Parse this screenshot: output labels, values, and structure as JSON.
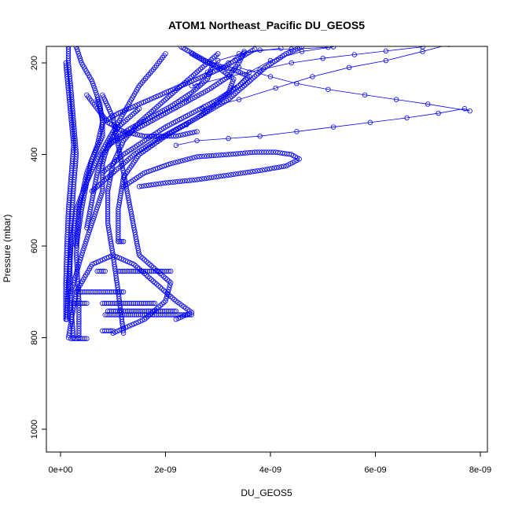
{
  "chart_data": {
    "type": "scatter",
    "title": "ATOM1 Northeast_Pacific DU_GEOS5",
    "xlabel": "DU_GEOS5",
    "ylabel": "Pressure (mbar)",
    "xlim": [
      0,
      8e-09
    ],
    "ylim": [
      1050,
      160
    ],
    "y_reversed": true,
    "grid": false,
    "legend": "none",
    "series_color": "#0000ff",
    "marker": "open-circle",
    "x_ticks": [
      {
        "value": 0,
        "label": "0e+00"
      },
      {
        "value": 2e-09,
        "label": "2e-09"
      },
      {
        "value": 4e-09,
        "label": "4e-09"
      },
      {
        "value": 6e-09,
        "label": "6e-09"
      },
      {
        "value": 8e-09,
        "label": "8e-09"
      }
    ],
    "y_ticks": [
      {
        "value": 200,
        "label": "200"
      },
      {
        "value": 400,
        "label": "400"
      },
      {
        "value": 600,
        "label": "600"
      },
      {
        "value": 800,
        "label": "800"
      },
      {
        "value": 1000,
        "label": "1000"
      }
    ],
    "profiles": [
      {
        "line": false,
        "step": 3,
        "points": [
          [
            2.5e-10,
            800
          ],
          [
            2e-10,
            740
          ],
          [
            1.8e-10,
            650
          ],
          [
            2e-10,
            560
          ],
          [
            2.5e-10,
            470
          ],
          [
            3e-10,
            400
          ],
          [
            2.5e-10,
            330
          ],
          [
            2e-10,
            260
          ],
          [
            1.5e-10,
            200
          ],
          [
            1.5e-10,
            165
          ]
        ]
      },
      {
        "line": false,
        "step": 3,
        "points": [
          [
            3.5e-10,
            800
          ],
          [
            3.5e-10,
            720
          ],
          [
            3e-10,
            620
          ],
          [
            3.5e-10,
            520
          ],
          [
            5e-10,
            440
          ],
          [
            7e-10,
            380
          ],
          [
            8e-10,
            330
          ],
          [
            7.5e-10,
            290
          ],
          [
            6e-10,
            240
          ],
          [
            4e-10,
            200
          ],
          [
            3e-10,
            165
          ]
        ]
      },
      {
        "line": false,
        "step": 3,
        "points": [
          [
            1.2e-10,
            760
          ],
          [
            1.5e-10,
            680
          ],
          [
            2e-10,
            600
          ],
          [
            3e-10,
            520
          ],
          [
            5e-10,
            460
          ],
          [
            7e-10,
            410
          ],
          [
            9e-10,
            370
          ],
          [
            1.1e-09,
            330
          ],
          [
            1.3e-09,
            290
          ],
          [
            1.5e-09,
            250
          ],
          [
            1.8e-09,
            210
          ],
          [
            2e-09,
            180
          ]
        ]
      },
      {
        "line": false,
        "step": 3,
        "points": [
          [
            1.5e-10,
            800
          ],
          [
            3e-10,
            700
          ],
          [
            6e-10,
            640
          ],
          [
            1e-09,
            620
          ],
          [
            1.4e-09,
            640
          ],
          [
            1.8e-09,
            680
          ],
          [
            2.2e-09,
            720
          ],
          [
            2.5e-09,
            745
          ],
          [
            2.2e-09,
            760
          ]
        ]
      },
      {
        "line": false,
        "step": 3,
        "points": [
          [
            1.2e-09,
            790
          ],
          [
            1.1e-09,
            700
          ],
          [
            1e-09,
            620
          ],
          [
            9e-10,
            550
          ],
          [
            9e-10,
            480
          ],
          [
            1e-09,
            420
          ],
          [
            1.2e-09,
            370
          ],
          [
            1.5e-09,
            330
          ],
          [
            1.9e-09,
            290
          ],
          [
            2.3e-09,
            250
          ],
          [
            2.7e-09,
            210
          ],
          [
            3e-09,
            180
          ]
        ]
      },
      {
        "line": false,
        "step": 3,
        "points": [
          [
            1e-09,
            790
          ],
          [
            1.6e-09,
            760
          ],
          [
            2e-09,
            720
          ],
          [
            2.1e-09,
            680
          ],
          [
            1.8e-09,
            650
          ],
          [
            1.5e-09,
            620
          ],
          [
            1.4e-09,
            560
          ],
          [
            1.3e-09,
            500
          ],
          [
            1.2e-09,
            440
          ],
          [
            1.1e-09,
            380
          ],
          [
            1e-09,
            320
          ],
          [
            8e-10,
            270
          ]
        ]
      },
      {
        "line": false,
        "step": 3,
        "points": [
          [
            1.1e-09,
            590
          ],
          [
            1.1e-09,
            520
          ],
          [
            1.2e-09,
            450
          ],
          [
            1.5e-09,
            400
          ],
          [
            2e-09,
            360
          ],
          [
            2.6e-09,
            320
          ],
          [
            3.2e-09,
            280
          ],
          [
            3.6e-09,
            240
          ],
          [
            3.9e-09,
            210
          ],
          [
            4.3e-09,
            180
          ],
          [
            4.6e-09,
            165
          ]
        ]
      },
      {
        "line": false,
        "step": 3,
        "points": [
          [
            1.2e-09,
            470
          ],
          [
            1.6e-09,
            440
          ],
          [
            2.1e-09,
            420
          ],
          [
            2.6e-09,
            405
          ],
          [
            3.2e-09,
            400
          ],
          [
            3.7e-09,
            395
          ],
          [
            4.1e-09,
            395
          ],
          [
            4.4e-09,
            400
          ],
          [
            4.55e-09,
            410
          ],
          [
            4.3e-09,
            425
          ],
          [
            3.8e-09,
            435
          ],
          [
            3.2e-09,
            445
          ],
          [
            2.6e-09,
            455
          ],
          [
            2e-09,
            462
          ],
          [
            1.5e-09,
            470
          ]
        ]
      },
      {
        "line": false,
        "step": 3,
        "points": [
          [
            8e-10,
            440
          ],
          [
            1.2e-09,
            400
          ],
          [
            1.6e-09,
            370
          ],
          [
            2e-09,
            340
          ],
          [
            2.5e-09,
            310
          ],
          [
            3e-09,
            280
          ],
          [
            3.4e-09,
            250
          ],
          [
            3.6e-09,
            230
          ],
          [
            3.3e-09,
            215
          ],
          [
            2.8e-09,
            200
          ],
          [
            2.5e-09,
            180
          ]
        ]
      },
      {
        "line": false,
        "step": 3,
        "points": [
          [
            6e-10,
            480
          ],
          [
            1e-09,
            440
          ],
          [
            1.4e-09,
            400
          ],
          [
            1.8e-09,
            370
          ],
          [
            2.2e-09,
            345
          ],
          [
            2.6e-09,
            320
          ],
          [
            2.9e-09,
            295
          ],
          [
            3.2e-09,
            265
          ],
          [
            3.3e-09,
            235
          ],
          [
            3e-09,
            210
          ],
          [
            2.6e-09,
            185
          ],
          [
            2.3e-09,
            165
          ]
        ]
      },
      {
        "line": false,
        "step": 3,
        "points": [
          [
            5e-10,
            270
          ],
          [
            7e-10,
            300
          ],
          [
            9e-10,
            330
          ],
          [
            1.2e-09,
            350
          ],
          [
            1.6e-09,
            360
          ],
          [
            2.2e-09,
            360
          ],
          [
            2.6e-09,
            350
          ]
        ]
      },
      {
        "line": false,
        "step": 3,
        "points": [
          [
            8e-10,
            330
          ],
          [
            1.1e-09,
            310
          ],
          [
            1.5e-09,
            290
          ],
          [
            1.9e-09,
            270
          ],
          [
            2.3e-09,
            250
          ],
          [
            2.7e-09,
            230
          ],
          [
            3.1e-09,
            210
          ],
          [
            3.4e-09,
            190
          ],
          [
            3.7e-09,
            170
          ]
        ]
      },
      {
        "line": false,
        "step": 3,
        "points": [
          [
            9e-10,
            380
          ],
          [
            1.2e-09,
            360
          ],
          [
            1.6e-09,
            335
          ],
          [
            2e-09,
            310
          ],
          [
            2.4e-09,
            285
          ],
          [
            2.8e-09,
            260
          ],
          [
            3.2e-09,
            230
          ],
          [
            3.4e-09,
            200
          ],
          [
            3.5e-09,
            175
          ]
        ]
      },
      {
        "line": false,
        "step": 3,
        "points": [
          [
            5e-10,
            560
          ],
          [
            6e-10,
            500
          ],
          [
            7e-10,
            440
          ],
          [
            8e-10,
            400
          ],
          [
            1e-09,
            370
          ],
          [
            1.3e-09,
            345
          ],
          [
            1.7e-09,
            320
          ],
          [
            2.1e-09,
            295
          ],
          [
            2.5e-09,
            265
          ],
          [
            2.8e-09,
            235
          ],
          [
            2.9e-09,
            205
          ]
        ]
      },
      {
        "line": false,
        "step": 3,
        "points": [
          [
            1e-10,
            760
          ],
          [
            1e-10,
            680
          ],
          [
            1.2e-10,
            600
          ],
          [
            1.5e-10,
            520
          ],
          [
            2e-10,
            450
          ],
          [
            2.5e-10,
            380
          ],
          [
            2e-10,
            320
          ],
          [
            1.5e-10,
            260
          ],
          [
            1e-10,
            200
          ]
        ]
      },
      {
        "line": false,
        "step": 3,
        "points": [
          [
            2e-10,
            700
          ],
          [
            4e-10,
            620
          ],
          [
            6e-10,
            550
          ],
          [
            8e-10,
            480
          ],
          [
            8e-10,
            420
          ],
          [
            9e-10,
            380
          ],
          [
            1.1e-09,
            340
          ],
          [
            1.5e-09,
            300
          ]
        ]
      },
      {
        "line": false,
        "step": 3,
        "points": [
          [
            3e-10,
            600
          ],
          [
            4e-10,
            520
          ],
          [
            5e-10,
            460
          ],
          [
            6e-10,
            410
          ],
          [
            8e-10,
            360
          ],
          [
            8e-10,
            320
          ],
          [
            7e-10,
            280
          ]
        ]
      },
      {
        "line": false,
        "step": 2.5,
        "points": [
          [
            1.1e-09,
            655
          ],
          [
            2.1e-09,
            655
          ]
        ]
      },
      {
        "line": false,
        "step": 2.5,
        "points": [
          [
            7e-10,
            655
          ],
          [
            8.5e-10,
            655
          ]
        ]
      },
      {
        "line": false,
        "step": 2.5,
        "points": [
          [
            3e-10,
            700
          ],
          [
            1.2e-09,
            700
          ]
        ]
      },
      {
        "line": false,
        "step": 2.5,
        "points": [
          [
            8e-10,
            725
          ],
          [
            1.8e-09,
            725
          ]
        ]
      },
      {
        "line": false,
        "step": 2.5,
        "points": [
          [
            9e-10,
            742
          ],
          [
            2.2e-09,
            742
          ]
        ]
      },
      {
        "line": false,
        "step": 2.5,
        "points": [
          [
            8.5e-10,
            750
          ],
          [
            2.5e-09,
            750
          ]
        ]
      },
      {
        "line": false,
        "step": 2.5,
        "points": [
          [
            8e-10,
            785
          ],
          [
            1e-09,
            785
          ]
        ]
      },
      {
        "line": false,
        "step": 2.5,
        "points": [
          [
            2e-10,
            725
          ],
          [
            5e-10,
            725
          ]
        ]
      },
      {
        "line": false,
        "step": 2.5,
        "points": [
          [
            2e-10,
            802
          ],
          [
            5e-10,
            802
          ]
        ]
      },
      {
        "line": false,
        "step": 2.5,
        "points": [
          [
            1.1e-09,
            590
          ],
          [
            1.2e-09,
            590
          ]
        ]
      },
      {
        "line": true,
        "step": 0,
        "points": [
          [
            2.2e-09,
            380
          ],
          [
            2.6e-09,
            370
          ],
          [
            3.2e-09,
            365
          ],
          [
            3.8e-09,
            360
          ],
          [
            4.5e-09,
            350
          ],
          [
            5.2e-09,
            340
          ],
          [
            5.9e-09,
            330
          ],
          [
            6.6e-09,
            320
          ],
          [
            7.2e-09,
            310
          ],
          [
            7.7e-09,
            300
          ],
          [
            7.8e-09,
            305
          ],
          [
            7e-09,
            290
          ],
          [
            6.4e-09,
            280
          ],
          [
            5.8e-09,
            270
          ],
          [
            5.1e-09,
            258
          ],
          [
            4.5e-09,
            245
          ],
          [
            4e-09,
            230
          ],
          [
            3.4e-09,
            210
          ]
        ]
      },
      {
        "line": true,
        "step": 0,
        "points": [
          [
            2.7e-09,
            300
          ],
          [
            3.4e-09,
            280
          ],
          [
            4.1e-09,
            255
          ],
          [
            4.8e-09,
            230
          ],
          [
            5.5e-09,
            210
          ],
          [
            6.2e-09,
            195
          ],
          [
            6.9e-09,
            175
          ],
          [
            7.4e-09,
            160
          ]
        ]
      },
      {
        "line": true,
        "step": 0,
        "points": [
          [
            2.5e-09,
            250
          ],
          [
            3.2e-09,
            230
          ],
          [
            3.8e-09,
            215
          ],
          [
            4.4e-09,
            200
          ],
          [
            5e-09,
            190
          ],
          [
            5.6e-09,
            182
          ],
          [
            6.2e-09,
            174
          ],
          [
            6.9e-09,
            165
          ]
        ]
      },
      {
        "line": true,
        "step": 0,
        "points": [
          [
            2.4e-09,
            335
          ],
          [
            2.9e-09,
            295
          ],
          [
            3.3e-09,
            255
          ],
          [
            3.6e-09,
            220
          ],
          [
            4e-09,
            195
          ],
          [
            4.6e-09,
            175
          ],
          [
            5.2e-09,
            165
          ]
        ]
      },
      {
        "line": true,
        "step": 0,
        "points": [
          [
            3.2e-09,
            200
          ],
          [
            3.4e-09,
            180
          ],
          [
            3.8e-09,
            172
          ],
          [
            4.4e-09,
            170
          ],
          [
            5.1e-09,
            166
          ]
        ]
      },
      {
        "line": true,
        "step": 0,
        "points": [
          [
            2.4e-09,
            285
          ],
          [
            2.6e-09,
            250
          ],
          [
            2.8e-09,
            220
          ],
          [
            3e-09,
            195
          ],
          [
            3.5e-09,
            178
          ],
          [
            4.2e-09,
            168
          ]
        ]
      }
    ]
  }
}
